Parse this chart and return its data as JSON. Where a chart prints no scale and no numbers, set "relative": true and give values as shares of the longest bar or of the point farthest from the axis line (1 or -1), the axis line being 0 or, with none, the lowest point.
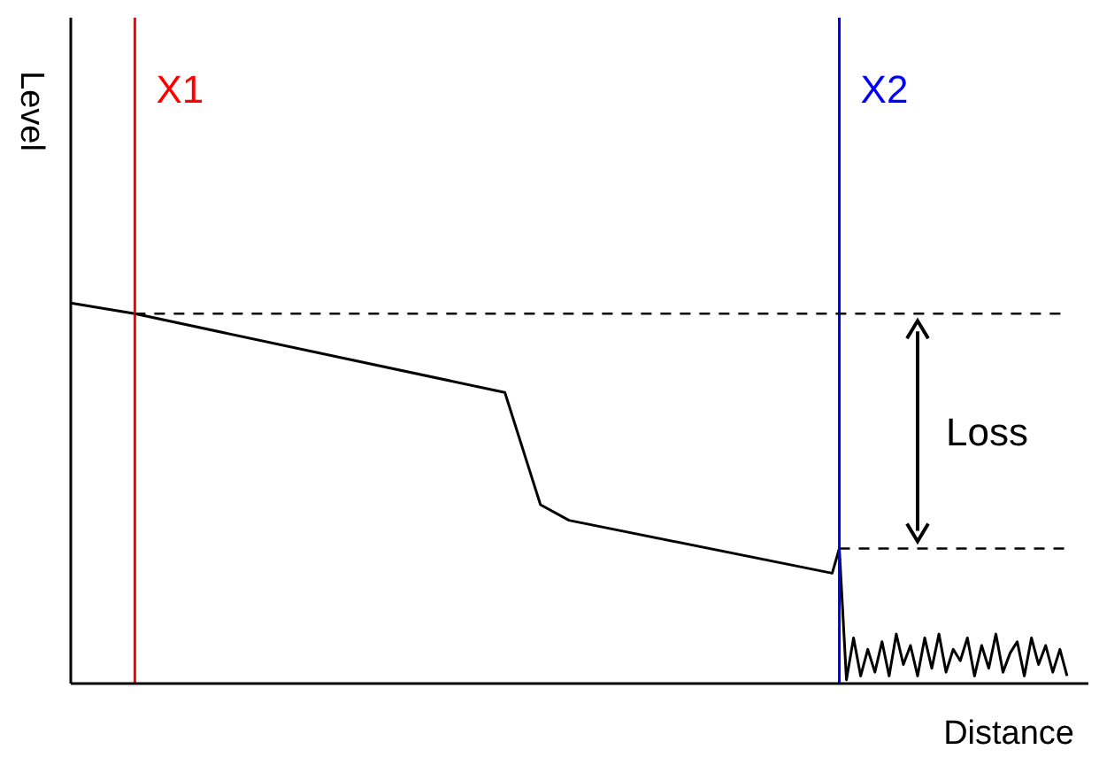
{
  "chart_data": {
    "type": "line",
    "relative": true,
    "xlabel": "Distance",
    "ylabel": "Level",
    "color": "#000000",
    "marker": "none",
    "categories": [
      null,
      null,
      null,
      null,
      null,
      null,
      null,
      null,
      null,
      null,
      null,
      null,
      null,
      null,
      null,
      null,
      null,
      null,
      null,
      null,
      null,
      null,
      null,
      null,
      null,
      null,
      null,
      null,
      null,
      null,
      null,
      null,
      null,
      null,
      null,
      null,
      null,
      null,
      null,
      null,
      null,
      null,
      null,
      null,
      null,
      null,
      null,
      null,
      null,
      null,
      null,
      null,
      null,
      null,
      null,
      null,
      null,
      null,
      null,
      null,
      null,
      null,
      null,
      null,
      null,
      null,
      null,
      null,
      null,
      null,
      null,
      null,
      null,
      null,
      null,
      null,
      null,
      null,
      null,
      null,
      null,
      null,
      null,
      null,
      null,
      null,
      null,
      null,
      null,
      null,
      null,
      null,
      null,
      null,
      null,
      null,
      null,
      null,
      null,
      null,
      null,
      null,
      null,
      null,
      null,
      null,
      null,
      null,
      null,
      null,
      null,
      null,
      null,
      null,
      null,
      null,
      null,
      null,
      null,
      null,
      null,
      null,
      null,
      null,
      null,
      null,
      null,
      null,
      null,
      null,
      null,
      null,
      null,
      null,
      null,
      null,
      null,
      null,
      null,
      null,
      null,
      null,
      null,
      null
    ],
    "values": [
      1,
      null,
      null,
      null,
      null,
      null,
      null,
      null,
      null,
      0.972,
      null,
      null,
      null,
      null,
      null,
      null,
      null,
      null,
      null,
      null,
      null,
      null,
      null,
      null,
      null,
      null,
      null,
      null,
      null,
      null,
      null,
      null,
      null,
      null,
      null,
      null,
      null,
      null,
      null,
      null,
      null,
      null,
      null,
      null,
      null,
      null,
      null,
      null,
      null,
      null,
      null,
      null,
      null,
      null,
      null,
      null,
      null,
      null,
      null,
      null,
      null,
      0.765,
      null,
      null,
      null,
      null,
      0.47,
      null,
      null,
      null,
      0.429,
      null,
      null,
      null,
      null,
      null,
      null,
      null,
      null,
      null,
      null,
      null,
      null,
      null,
      null,
      null,
      null,
      null,
      null,
      null,
      null,
      null,
      null,
      null,
      null,
      null,
      null,
      null,
      null,
      null,
      null,
      null,
      null,
      null,
      null,
      null,
      null,
      0.29,
      0.355,
      0.01,
      0.12,
      0.02,
      0.09,
      0.03,
      0.11,
      0.02,
      0.13,
      0.05,
      0.1,
      0.02,
      0.12,
      0.04,
      0.13,
      0.03,
      0.09,
      0.06,
      0.12,
      0.02,
      0.1,
      0.04,
      0.13,
      0.03,
      0.08,
      0.11,
      0.02,
      0.12,
      0.05,
      0.1,
      0.03,
      0.09,
      0.02,
      null,
      null,
      null
    ],
    "ref_lines": [
      {
        "axis": "y",
        "value": 0.972,
        "color": "#000000",
        "line_style": "dashed"
      },
      {
        "axis": "y",
        "value": 0.355,
        "color": "#000000",
        "line_style": "dashed"
      }
    ],
    "annotations": [
      "X1",
      "X2",
      "Loss"
    ]
  }
}
